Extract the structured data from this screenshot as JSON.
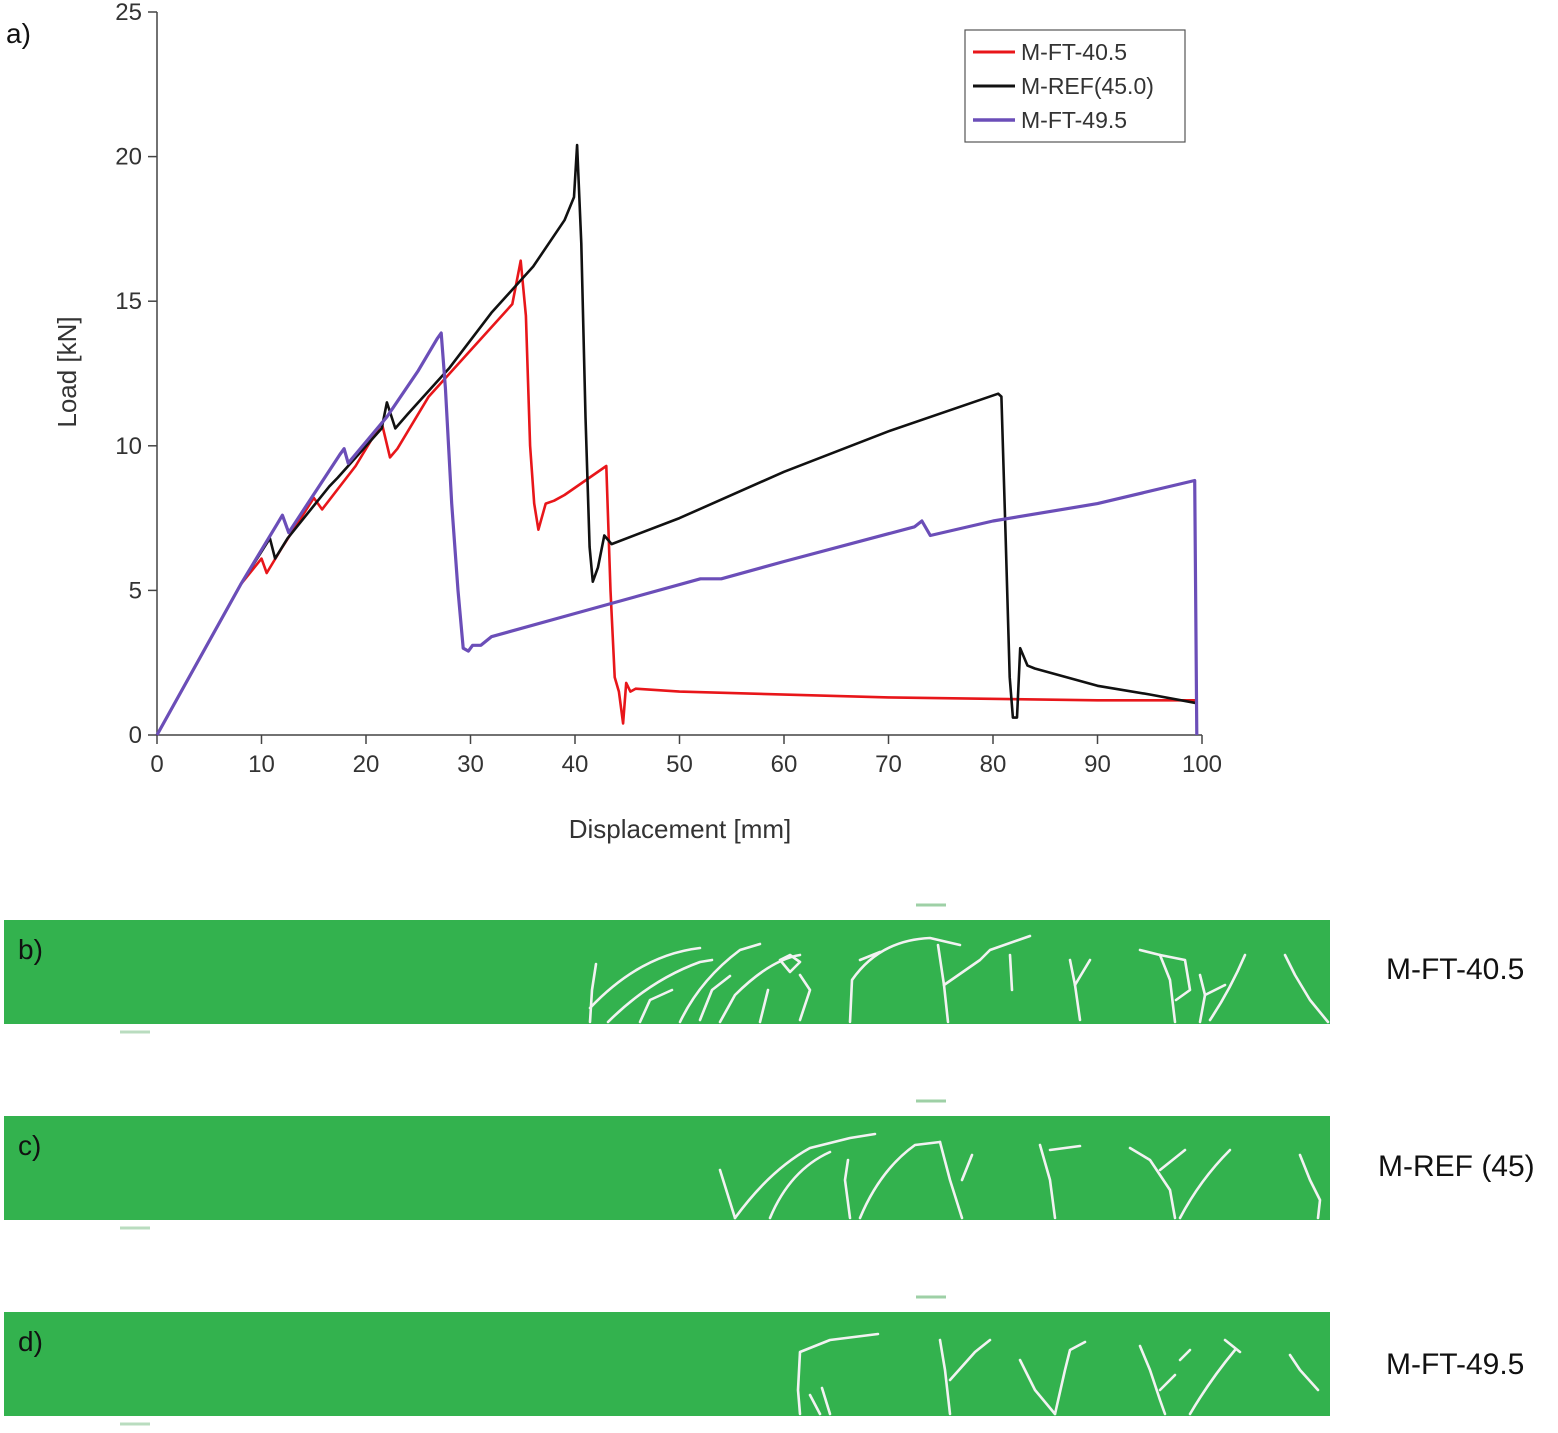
{
  "panels": {
    "a": "a)",
    "b": "b)",
    "c": "c)",
    "d": "d)"
  },
  "chart_data": {
    "type": "line",
    "xlabel": "Displacement [mm]",
    "ylabel": "Load [kN]",
    "xlim": [
      0,
      100
    ],
    "ylim": [
      0,
      25
    ],
    "xticks": [
      0,
      10,
      20,
      30,
      40,
      50,
      60,
      70,
      80,
      90,
      100
    ],
    "yticks": [
      0,
      5,
      10,
      15,
      20,
      25
    ],
    "grid": false,
    "legend_position": "top-right",
    "series": [
      {
        "name": "M-FT-40.5",
        "color": "#e8161a",
        "points": [
          [
            0,
            0
          ],
          [
            8,
            5.2
          ],
          [
            10,
            6.1
          ],
          [
            10.5,
            5.6
          ],
          [
            12,
            6.5
          ],
          [
            15,
            8.2
          ],
          [
            15.8,
            7.8
          ],
          [
            19,
            9.3
          ],
          [
            21.5,
            10.8
          ],
          [
            22.3,
            9.6
          ],
          [
            23,
            9.9
          ],
          [
            26,
            11.7
          ],
          [
            30,
            13.3
          ],
          [
            34,
            14.9
          ],
          [
            34.8,
            16.4
          ],
          [
            35.3,
            14.5
          ],
          [
            35.7,
            10
          ],
          [
            36.1,
            8.0
          ],
          [
            36.5,
            7.1
          ],
          [
            37.2,
            8.0
          ],
          [
            38,
            8.1
          ],
          [
            39,
            8.3
          ],
          [
            43,
            9.3
          ],
          [
            43.4,
            5
          ],
          [
            43.8,
            2
          ],
          [
            44.2,
            1.5
          ],
          [
            44.6,
            0.4
          ],
          [
            44.9,
            1.8
          ],
          [
            45.3,
            1.5
          ],
          [
            45.8,
            1.6
          ],
          [
            50,
            1.5
          ],
          [
            70,
            1.3
          ],
          [
            90,
            1.2
          ],
          [
            99.5,
            1.2
          ]
        ]
      },
      {
        "name": "M-REF(45.0)",
        "color": "#111111",
        "points": [
          [
            0,
            0
          ],
          [
            8,
            5.2
          ],
          [
            10.8,
            6.8
          ],
          [
            11.3,
            6.1
          ],
          [
            12.5,
            6.8
          ],
          [
            16.5,
            8.6
          ],
          [
            17.3,
            8.9
          ],
          [
            21.5,
            10.6
          ],
          [
            22,
            11.5
          ],
          [
            22.8,
            10.6
          ],
          [
            24,
            11.1
          ],
          [
            28,
            12.7
          ],
          [
            32,
            14.6
          ],
          [
            36,
            16.2
          ],
          [
            39,
            17.8
          ],
          [
            39.9,
            18.6
          ],
          [
            40.2,
            20.4
          ],
          [
            40.6,
            17
          ],
          [
            41,
            11
          ],
          [
            41.4,
            6.5
          ],
          [
            41.7,
            5.3
          ],
          [
            42.2,
            5.8
          ],
          [
            42.8,
            6.9
          ],
          [
            43.5,
            6.6
          ],
          [
            50,
            7.5
          ],
          [
            60,
            9.1
          ],
          [
            70,
            10.5
          ],
          [
            80.5,
            11.8
          ],
          [
            80.8,
            11.7
          ],
          [
            81.2,
            7
          ],
          [
            81.6,
            2
          ],
          [
            81.9,
            0.6
          ],
          [
            82.3,
            0.6
          ],
          [
            82.6,
            3.0
          ],
          [
            83.3,
            2.4
          ],
          [
            84,
            2.3
          ],
          [
            90,
            1.7
          ],
          [
            95,
            1.4
          ],
          [
            99.5,
            1.1
          ]
        ]
      },
      {
        "name": "M-FT-49.5",
        "color": "#6b4eb8",
        "points": [
          [
            0,
            0
          ],
          [
            8,
            5.2
          ],
          [
            11.5,
            7.3
          ],
          [
            12,
            7.6
          ],
          [
            12.6,
            7.0
          ],
          [
            17.5,
            9.7
          ],
          [
            17.9,
            9.9
          ],
          [
            18.3,
            9.4
          ],
          [
            22,
            11.0
          ],
          [
            25,
            12.6
          ],
          [
            26.8,
            13.7
          ],
          [
            27.2,
            13.9
          ],
          [
            27.6,
            12
          ],
          [
            28.2,
            8
          ],
          [
            28.8,
            5
          ],
          [
            29.3,
            3.0
          ],
          [
            29.8,
            2.9
          ],
          [
            30.2,
            3.1
          ],
          [
            31,
            3.1
          ],
          [
            32,
            3.4
          ],
          [
            40,
            4.2
          ],
          [
            52,
            5.4
          ],
          [
            54,
            5.4
          ],
          [
            60,
            6.0
          ],
          [
            72.5,
            7.2
          ],
          [
            73.2,
            7.4
          ],
          [
            74,
            6.9
          ],
          [
            80,
            7.4
          ],
          [
            90,
            8.0
          ],
          [
            99.3,
            8.8
          ],
          [
            99.5,
            0
          ]
        ]
      }
    ]
  },
  "beams": [
    {
      "panel": "b)",
      "label": "M-FT-40.5"
    },
    {
      "panel": "c)",
      "label": "M-REF (45)"
    },
    {
      "panel": "d)",
      "label": "M-FT-49.5"
    }
  ],
  "colors": {
    "beam_green": "#33b24e",
    "crack": "#f2f2f2"
  }
}
